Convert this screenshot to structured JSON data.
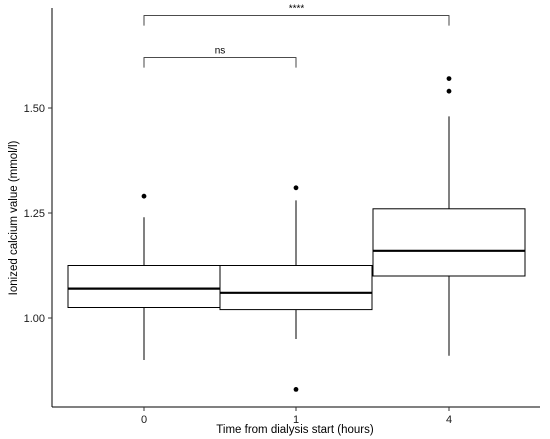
{
  "chart_data": {
    "type": "box",
    "xlabel": "Time from dialysis start (hours)",
    "ylabel": "Ionized calcium value (mmol/l)",
    "ylim": [
      0.8,
      1.75
    ],
    "yticks": [
      1.0,
      1.25,
      1.5
    ],
    "ytick_labels": [
      "1.00",
      "1.25",
      "1.50"
    ],
    "grid": false,
    "boxes": [
      {
        "category": "0",
        "whisker_low": 0.9,
        "q1": 1.025,
        "median": 1.07,
        "q3": 1.125,
        "whisker_high": 1.24,
        "outliers": [
          1.29
        ]
      },
      {
        "category": "1",
        "whisker_low": 0.95,
        "q1": 1.02,
        "median": 1.06,
        "q3": 1.125,
        "whisker_high": 1.28,
        "outliers": [
          1.31,
          0.83
        ]
      },
      {
        "category": "4",
        "whisker_low": 0.91,
        "q1": 1.1,
        "median": 1.16,
        "q3": 1.26,
        "whisker_high": 1.48,
        "outliers": [
          1.54,
          1.57
        ]
      }
    ],
    "comparisons": [
      {
        "from": "0",
        "to": "1",
        "label": "ns",
        "y": 1.62
      },
      {
        "from": "0",
        "to": "4",
        "label": "****",
        "y": 1.72
      }
    ]
  }
}
